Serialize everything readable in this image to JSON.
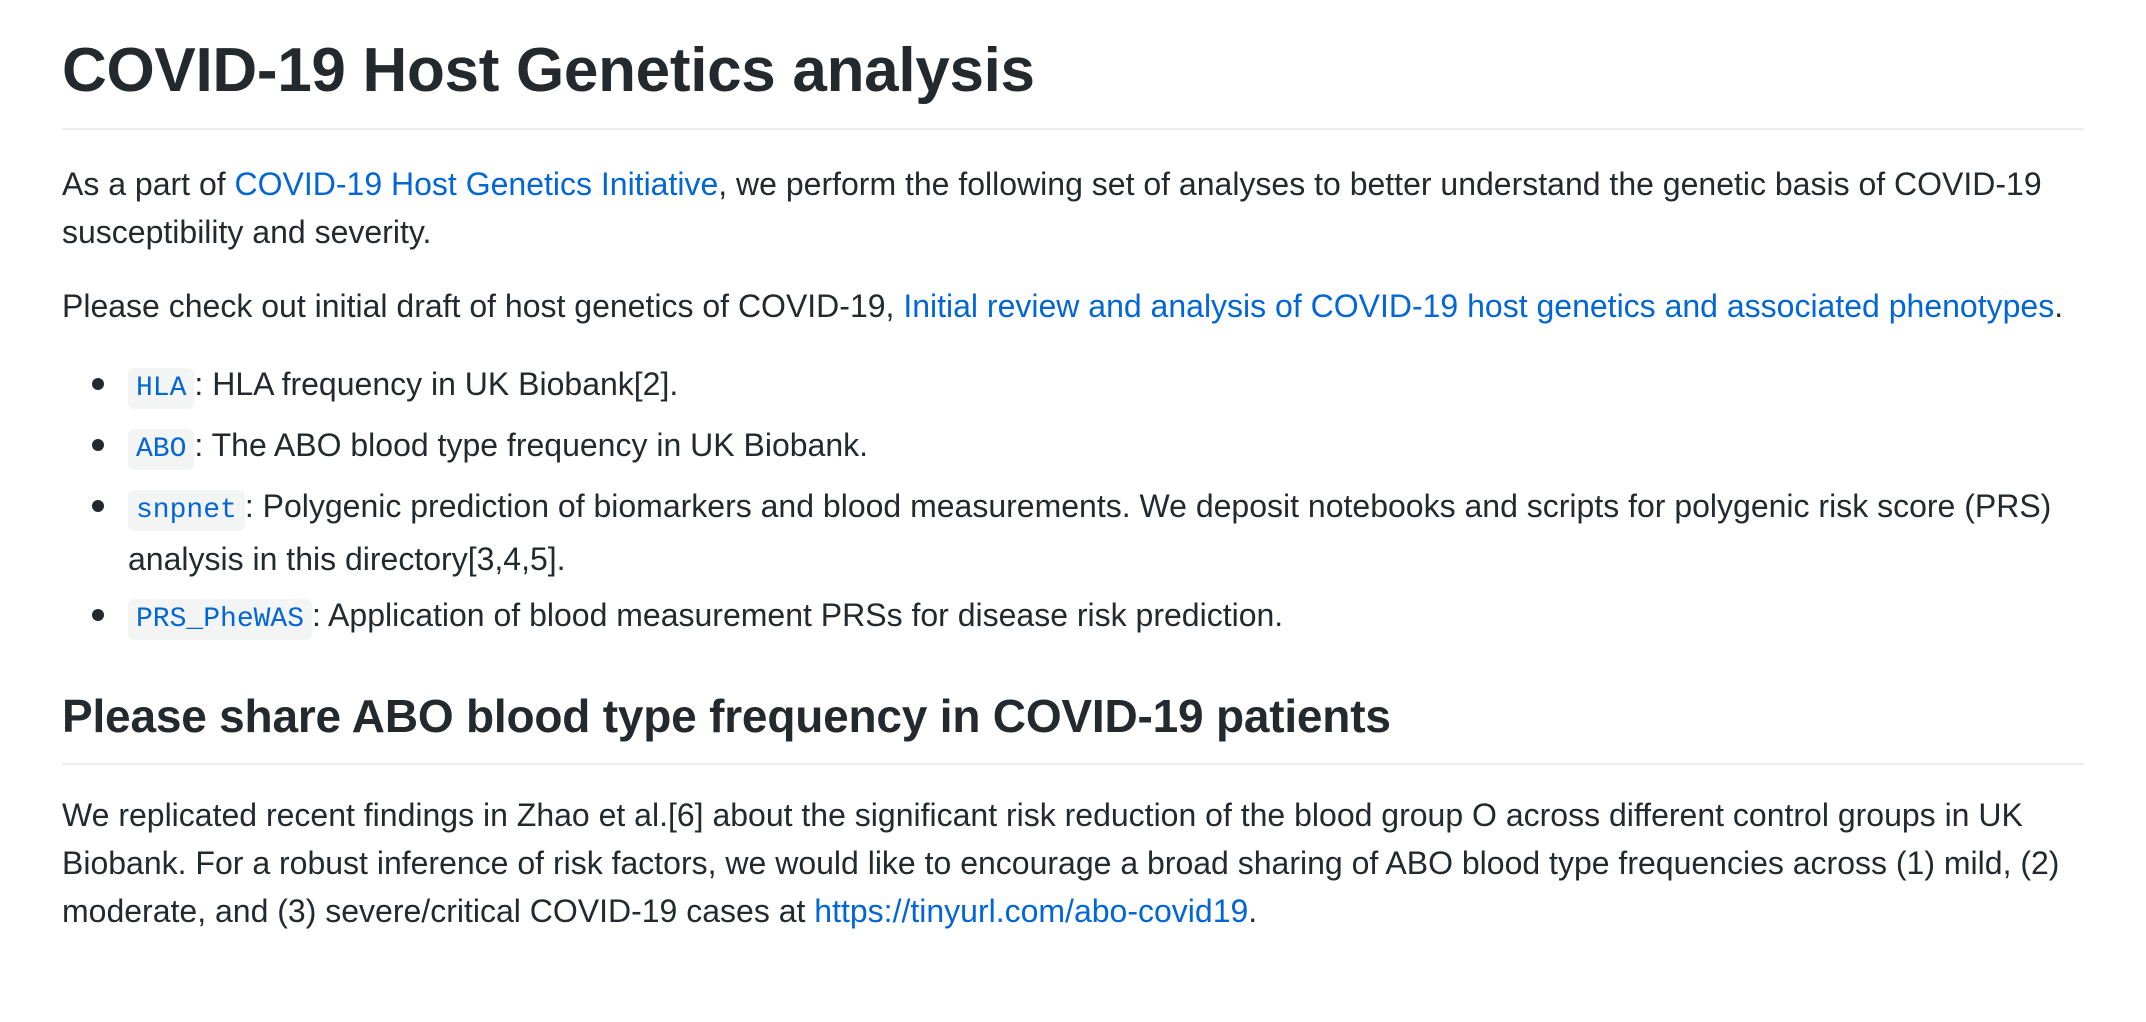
{
  "title": "COVID-19 Host Genetics analysis",
  "intro": {
    "prefix": "As a part of ",
    "link_text": "COVID-19 Host Genetics Initiative",
    "suffix": ", we perform the following set of analyses to better understand the genetic basis of COVID-19 susceptibility and severity."
  },
  "review": {
    "prefix": "Please check out initial draft of host genetics of COVID-19, ",
    "link_text": "Initial review and analysis of COVID-19 host genetics and associated phenotypes",
    "suffix": "."
  },
  "analyses": [
    {
      "code": "HLA",
      "desc": ": HLA frequency in UK Biobank[2]."
    },
    {
      "code": "ABO",
      "desc": ": The ABO blood type frequency in UK Biobank."
    },
    {
      "code": "snpnet",
      "desc": ": Polygenic prediction of biomarkers and blood measurements. We deposit notebooks and scripts for polygenic risk score (PRS) analysis in this directory[3,4,5]."
    },
    {
      "code": "PRS_PheWAS",
      "desc": ": Application of blood measurement PRSs for disease risk prediction."
    }
  ],
  "section2": {
    "heading": "Please share ABO blood type frequency in COVID-19 patients",
    "text": "We replicated recent findings in Zhao et al.[6] about the significant risk reduction of the blood group O across different control groups in UK Biobank. For a robust inference of risk factors, we would like to encourage a broad sharing of ABO blood type frequencies across (1) mild, (2) moderate, and (3) severe/critical COVID-19 cases at ",
    "link_text": "https://tinyurl.com/abo-covid19",
    "suffix": "."
  }
}
